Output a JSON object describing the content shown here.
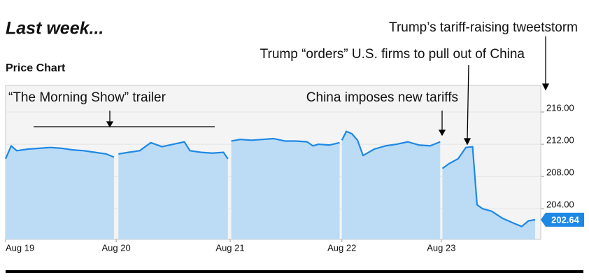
{
  "chart_data": {
    "type": "line",
    "title": "Last week...",
    "subtitle": "Price Chart",
    "annotations": [
      "Trump’s tariff-raising tweetstorm",
      "Trump “orders” U.S. firms to pull out of China",
      "“The Morning Show” trailer",
      "China imposes new tariffs"
    ],
    "color": "#1e88e5",
    "fill": "#bcdcf5",
    "x": [
      0,
      0.05,
      0.1,
      0.2,
      0.3,
      0.4,
      0.5,
      0.6,
      0.7,
      0.8,
      0.9,
      0.97,
      0.99,
      1.01,
      1.1,
      1.2,
      1.3,
      1.4,
      1.5,
      1.6,
      1.65,
      1.75,
      1.85,
      1.95,
      1.99,
      2.0,
      2.02,
      2.1,
      2.2,
      2.3,
      2.4,
      2.5,
      2.6,
      2.7,
      2.75,
      2.8,
      2.9,
      2.99,
      3.0,
      3.01,
      3.05,
      3.1,
      3.15,
      3.2,
      3.3,
      3.4,
      3.5,
      3.6,
      3.7,
      3.8,
      3.89,
      3.9,
      3.91,
      3.97,
      4.05,
      4.12,
      4.18,
      4.22,
      4.27,
      4.35,
      4.45,
      4.55,
      4.62,
      4.68,
      4.74
    ],
    "values": [
      210.2,
      211.8,
      211.2,
      211.4,
      211.5,
      211.6,
      211.5,
      211.3,
      211.2,
      211.0,
      210.8,
      210.4,
      null,
      210.8,
      211.0,
      211.2,
      212.2,
      211.7,
      212.0,
      212.3,
      211.2,
      211.0,
      210.9,
      211.0,
      210.2,
      null,
      212.4,
      212.6,
      212.5,
      212.6,
      212.7,
      212.4,
      212.4,
      212.3,
      211.8,
      212.0,
      211.9,
      212.2,
      null,
      212.5,
      213.6,
      213.3,
      212.5,
      210.6,
      211.4,
      211.8,
      212.0,
      212.3,
      211.9,
      211.8,
      212.3,
      null,
      209.0,
      209.6,
      210.2,
      211.6,
      211.7,
      204.5,
      204.0,
      203.7,
      202.8,
      202.2,
      201.8,
      202.5,
      202.64
    ],
    "xlim": [
      0,
      4.79
    ],
    "xticks": [
      {
        "value": 0,
        "label": "Aug 19"
      },
      {
        "value": 0.99,
        "label": "Aug 20"
      },
      {
        "value": 2.01,
        "label": "Aug 21"
      },
      {
        "value": 3.01,
        "label": "Aug 22"
      },
      {
        "value": 3.9,
        "label": "Aug 23"
      }
    ],
    "ylim": [
      200.2,
      219.3
    ],
    "yticks": [
      {
        "value": 204,
        "label": "204.00"
      },
      {
        "value": 208,
        "label": "208.00"
      },
      {
        "value": 212,
        "label": "212.00"
      },
      {
        "value": 216,
        "label": "216.00"
      }
    ],
    "grid": true
  }
}
